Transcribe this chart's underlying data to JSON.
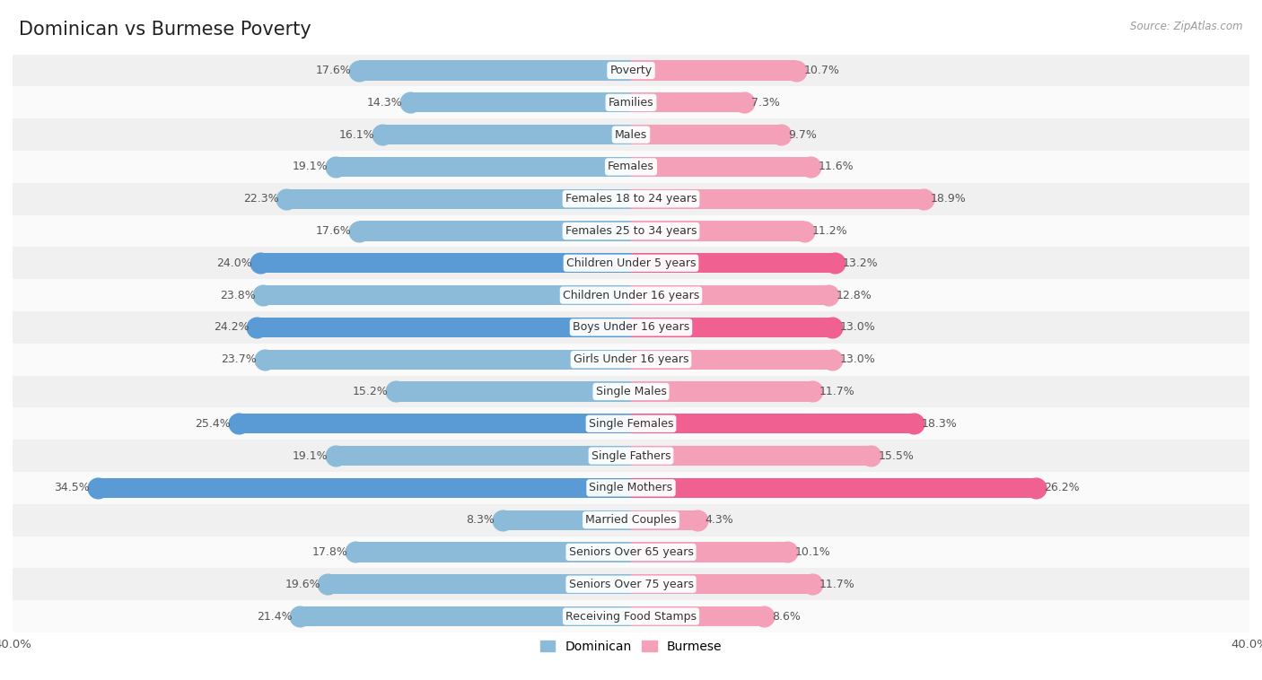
{
  "title": "Dominican vs Burmese Poverty",
  "source": "Source: ZipAtlas.com",
  "categories": [
    "Poverty",
    "Families",
    "Males",
    "Females",
    "Females 18 to 24 years",
    "Females 25 to 34 years",
    "Children Under 5 years",
    "Children Under 16 years",
    "Boys Under 16 years",
    "Girls Under 16 years",
    "Single Males",
    "Single Females",
    "Single Fathers",
    "Single Mothers",
    "Married Couples",
    "Seniors Over 65 years",
    "Seniors Over 75 years",
    "Receiving Food Stamps"
  ],
  "dominican": [
    17.6,
    14.3,
    16.1,
    19.1,
    22.3,
    17.6,
    24.0,
    23.8,
    24.2,
    23.7,
    15.2,
    25.4,
    19.1,
    34.5,
    8.3,
    17.8,
    19.6,
    21.4
  ],
  "burmese": [
    10.7,
    7.3,
    9.7,
    11.6,
    18.9,
    11.2,
    13.2,
    12.8,
    13.0,
    13.0,
    11.7,
    18.3,
    15.5,
    26.2,
    4.3,
    10.1,
    11.7,
    8.6
  ],
  "dominican_color": "#8bbbd9",
  "burmese_color": "#f4a0b8",
  "dominican_highlight_color": "#5b9bd5",
  "burmese_highlight_color": "#f06090",
  "highlight_indices": [
    6,
    8,
    11,
    13
  ],
  "axis_max": 40.0,
  "bar_height": 0.62,
  "bg_color": "#ffffff",
  "row_color_even": "#f0f0f0",
  "row_color_odd": "#fafafa",
  "title_fontsize": 15,
  "label_fontsize": 9,
  "value_fontsize": 9,
  "legend_fontsize": 10
}
